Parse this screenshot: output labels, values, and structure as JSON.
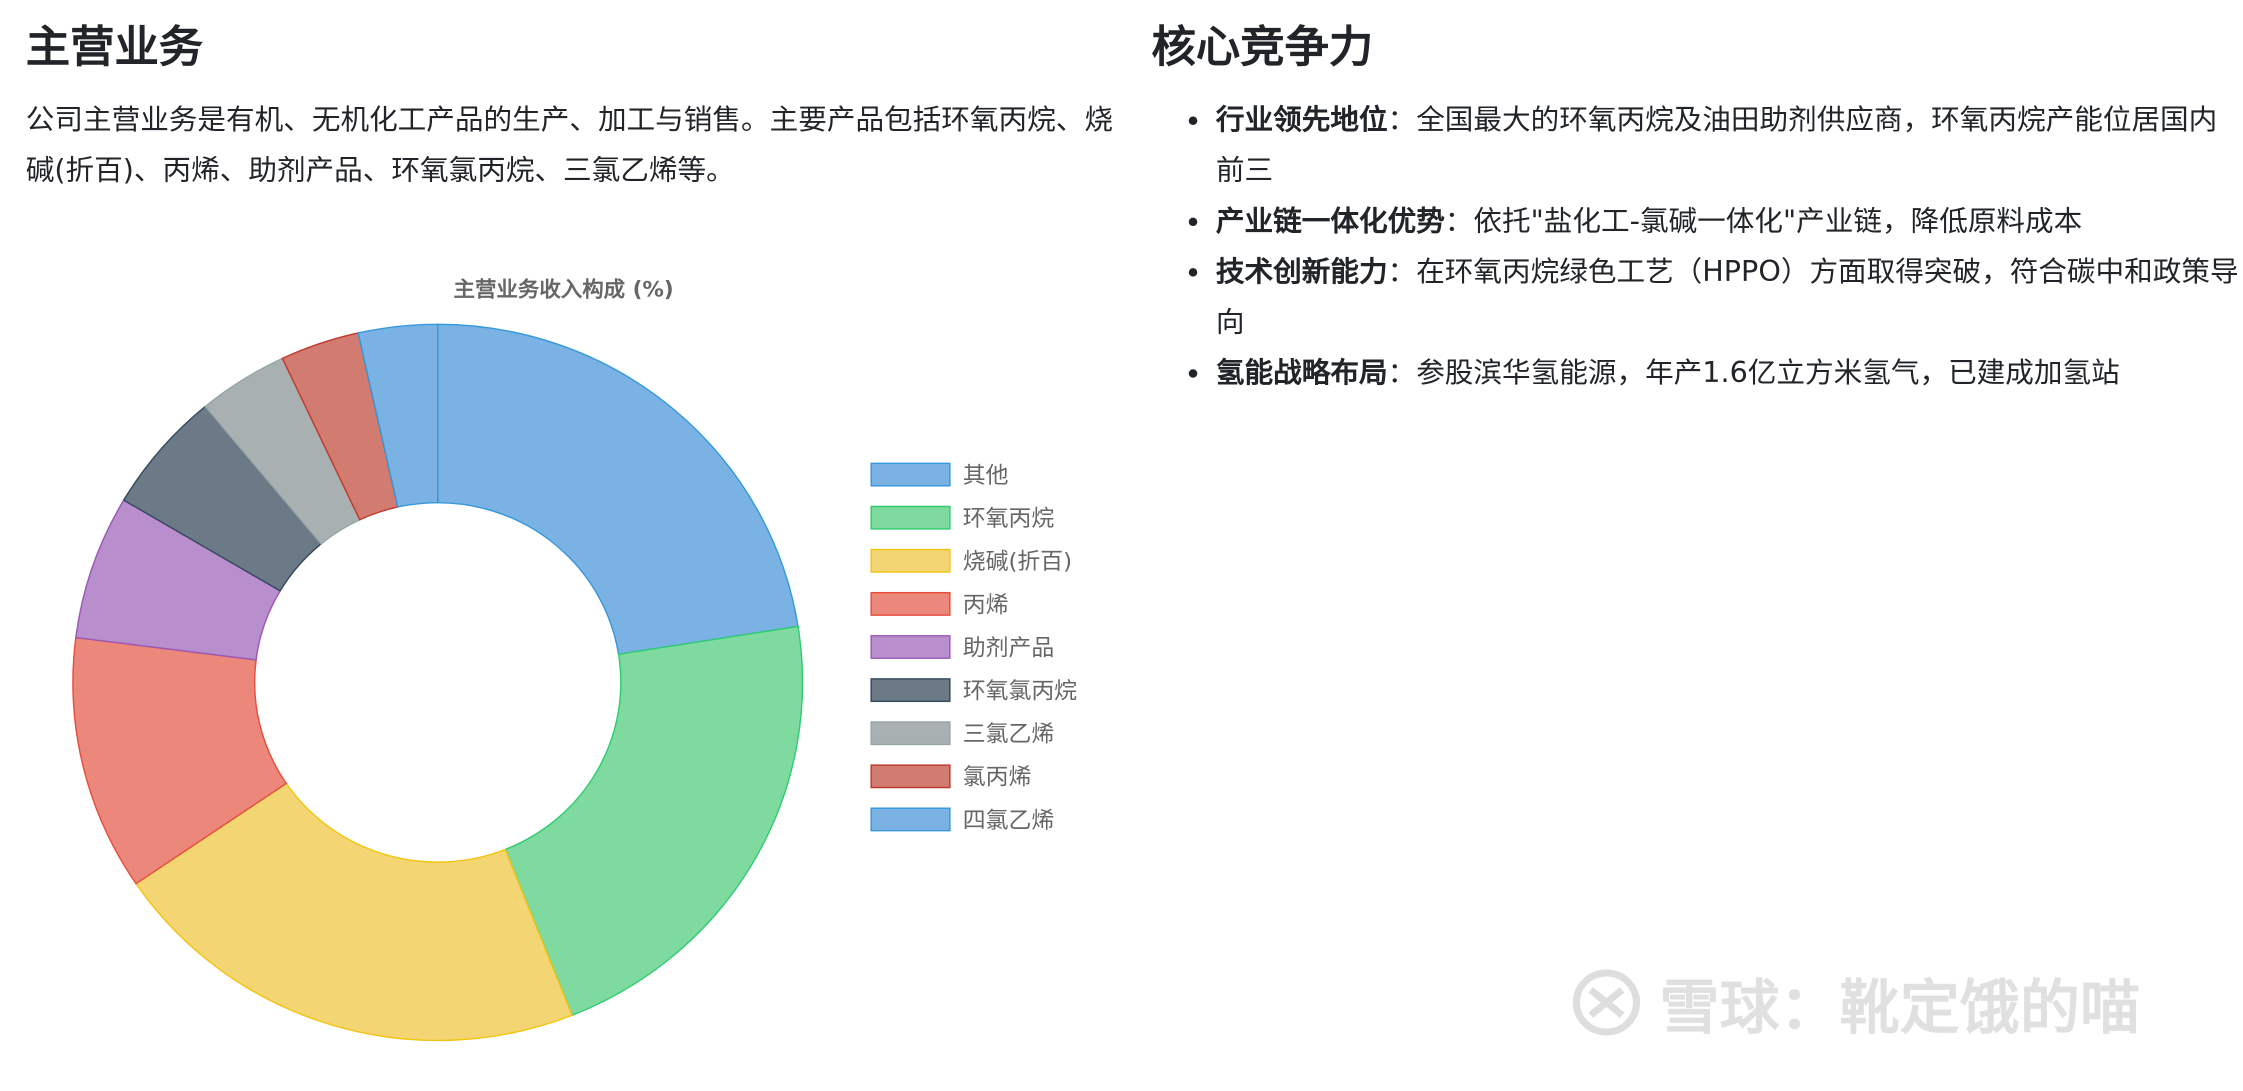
{
  "left": {
    "title": "主营业务",
    "intro": "公司主营业务是有机、无机化工产品的生产、加工与销售。主要产品包括环氧丙烷、烧碱(折百)、丙烯、助剂产品、环氧氯丙烷、三氯乙烯等。"
  },
  "right": {
    "title": "核心竞争力",
    "items": [
      {
        "label": "行业领先地位",
        "sep": "：",
        "text": "全国最大的环氧丙烷及油田助剂供应商，环氧丙烷产能位居国内前三"
      },
      {
        "label": "产业链一体化优势",
        "sep": "：",
        "text": "依托\"盐化工-氯碱一体化\"产业链，降低原料成本"
      },
      {
        "label": "技术创新能力",
        "sep": "：",
        "text": "在环氧丙烷绿色工艺（HPPO）方面取得突破，符合碳中和政策导向"
      },
      {
        "label": "氢能战略布局",
        "sep": "：",
        "text": "参股滨华氢能源，年产1.6亿立方米氢气，已建成加氢站"
      }
    ]
  },
  "watermark": {
    "text": "雪球：靴定饿的喵",
    "icon": "xueqiu-logo-icon"
  },
  "chart_data": {
    "type": "pie",
    "variant": "doughnut",
    "title": "主营业务收入构成 (%)",
    "legend_position": "right",
    "categories": [
      "其他",
      "环氧丙烷",
      "烧碱(折百)",
      "丙烯",
      "助剂产品",
      "环氧氯丙烷",
      "三氯乙烯",
      "氯丙烯",
      "四氯乙烯"
    ],
    "values": [
      22.5,
      21.5,
      21.5,
      11.5,
      6.5,
      5.5,
      4.0,
      3.5,
      3.5
    ],
    "colors": [
      "#7ab3e3",
      "#7fda9f",
      "#f4d574",
      "#ec877b",
      "#b88ecc",
      "#6b7a86",
      "#a9b0b2",
      "#d27b70",
      "#7ab3e3"
    ],
    "borders": [
      "#3498db",
      "#2ecc71",
      "#f1c40f",
      "#e74c3c",
      "#9b59b6",
      "#34495e",
      "#95a5a6",
      "#c0392b",
      "#3498db"
    ]
  }
}
